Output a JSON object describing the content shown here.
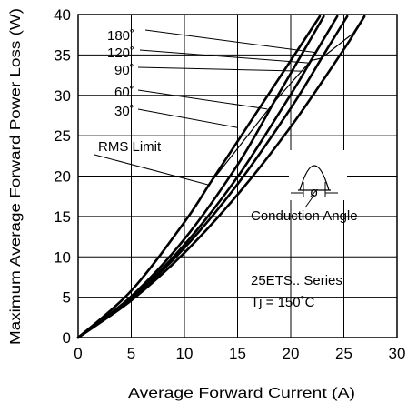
{
  "chart_data": {
    "type": "line",
    "title": "",
    "xlabel": "Average Forward Current (A)",
    "ylabel": "Maximum Average Forward Power Loss (W)",
    "xlim": [
      0,
      30
    ],
    "ylim": [
      0,
      40
    ],
    "xticks": [
      0,
      5,
      10,
      15,
      20,
      25,
      30
    ],
    "yticks": [
      0,
      5,
      10,
      15,
      20,
      25,
      30,
      35,
      40
    ],
    "grid": true,
    "series": [
      {
        "name": "180°",
        "x": [
          0,
          5,
          10,
          15,
          20,
          25,
          26
        ],
        "y": [
          0,
          4.6,
          10.5,
          17.7,
          26.1,
          35.7,
          37.8
        ]
      },
      {
        "name": "120°",
        "x": [
          0,
          5,
          10,
          15,
          20,
          22.9
        ],
        "y": [
          0,
          4.8,
          11.1,
          19.0,
          28.4,
          34.6
        ]
      },
      {
        "name": "90°",
        "x": [
          0,
          5,
          10,
          15,
          20,
          21.9
        ],
        "y": [
          0,
          4.9,
          11.5,
          19.9,
          30.1,
          34.3
        ]
      },
      {
        "name": "60°",
        "x": [
          0,
          5,
          10,
          15,
          18.4
        ],
        "y": [
          0,
          5.1,
          12.2,
          21.4,
          29.1
        ]
      },
      {
        "name": "30°",
        "x": [
          0,
          5,
          10,
          12.3
        ],
        "y": [
          0,
          5.8,
          14.3,
          18.9
        ]
      }
    ],
    "rms_limit": {
      "label": "RMS Limit",
      "x": [
        12.3,
        18.4,
        21.9,
        22.9,
        26
      ],
      "y": [
        18.9,
        29.1,
        34.3,
        34.6,
        37.8
      ]
    },
    "annotations": {
      "conduction_angle": "Conduction Angle",
      "phi": "ø",
      "series_label": "25ETS.. Series",
      "tj_label": "Tj = 150˚C"
    },
    "legend_labels": [
      "180˚",
      "120˚",
      "90˚",
      "60˚",
      "30˚"
    ]
  }
}
